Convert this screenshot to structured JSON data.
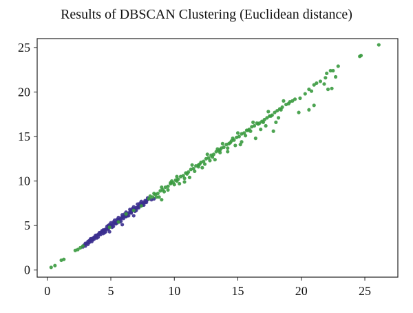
{
  "chart_data": {
    "type": "scatter",
    "title": "Results of DBSCAN Clustering (Euclidean distance)",
    "xlabel": "",
    "ylabel": "",
    "xlim": [
      -0.8,
      27.6
    ],
    "ylim": [
      -0.8,
      26.0
    ],
    "x_ticks": [
      0,
      5,
      10,
      15,
      20,
      25
    ],
    "y_ticks": [
      0,
      5,
      10,
      15,
      20,
      25
    ],
    "colors": {
      "cluster_blue": "#3b2f8f",
      "cluster_green": "#3a9a3f"
    },
    "series": [
      {
        "color": "#3b2f8f",
        "points": [
          [
            2.9,
            2.8
          ],
          [
            3.0,
            3.0
          ],
          [
            3.1,
            3.0
          ],
          [
            3.2,
            3.2
          ],
          [
            3.3,
            3.3
          ],
          [
            3.4,
            3.3
          ],
          [
            3.5,
            3.5
          ],
          [
            3.6,
            3.6
          ],
          [
            3.7,
            3.7
          ],
          [
            3.8,
            3.7
          ],
          [
            3.9,
            3.9
          ],
          [
            4.0,
            4.0
          ],
          [
            4.1,
            4.0
          ],
          [
            4.2,
            4.2
          ],
          [
            4.3,
            4.3
          ],
          [
            4.4,
            4.3
          ],
          [
            4.5,
            4.5
          ],
          [
            4.6,
            4.6
          ],
          [
            4.7,
            4.6
          ],
          [
            4.8,
            4.8
          ],
          [
            4.9,
            4.9
          ],
          [
            5.0,
            5.0
          ],
          [
            5.1,
            5.0
          ],
          [
            5.2,
            5.2
          ],
          [
            5.3,
            5.3
          ],
          [
            5.4,
            5.3
          ],
          [
            5.5,
            5.5
          ],
          [
            5.6,
            5.6
          ],
          [
            5.7,
            5.7
          ],
          [
            5.8,
            5.8
          ],
          [
            5.9,
            5.9
          ],
          [
            6.0,
            6.0
          ],
          [
            6.1,
            6.0
          ],
          [
            6.2,
            6.2
          ],
          [
            6.3,
            6.3
          ],
          [
            6.4,
            6.4
          ],
          [
            6.5,
            6.5
          ],
          [
            6.6,
            6.5
          ],
          [
            6.7,
            6.7
          ],
          [
            6.8,
            6.8
          ],
          [
            6.9,
            6.9
          ],
          [
            7.0,
            7.0
          ],
          [
            7.1,
            7.0
          ],
          [
            7.2,
            7.2
          ],
          [
            7.3,
            7.3
          ],
          [
            7.4,
            7.3
          ],
          [
            7.5,
            7.5
          ],
          [
            7.6,
            7.6
          ],
          [
            7.7,
            7.6
          ],
          [
            7.8,
            7.8
          ],
          [
            7.9,
            7.9
          ],
          [
            8.0,
            8.0
          ],
          [
            8.2,
            7.9
          ],
          [
            3.3,
            3.1
          ],
          [
            3.6,
            3.4
          ],
          [
            3.9,
            3.6
          ],
          [
            4.2,
            4.0
          ],
          [
            4.5,
            4.2
          ],
          [
            4.8,
            4.6
          ],
          [
            5.1,
            4.8
          ],
          [
            5.4,
            5.2
          ],
          [
            5.7,
            5.4
          ],
          [
            6.0,
            5.8
          ],
          [
            6.3,
            6.1
          ],
          [
            6.6,
            6.4
          ],
          [
            6.9,
            6.7
          ],
          [
            7.2,
            7.0
          ],
          [
            7.5,
            7.3
          ],
          [
            7.8,
            7.6
          ],
          [
            4.4,
            4.5
          ],
          [
            4.7,
            4.9
          ],
          [
            5.0,
            5.3
          ],
          [
            5.3,
            5.6
          ],
          [
            5.6,
            5.9
          ],
          [
            5.9,
            6.2
          ],
          [
            6.2,
            6.5
          ],
          [
            6.5,
            6.8
          ],
          [
            6.8,
            7.1
          ],
          [
            7.1,
            7.4
          ],
          [
            7.4,
            7.7
          ],
          [
            3.5,
            3.2
          ],
          [
            4.0,
            3.7
          ],
          [
            4.6,
            4.3
          ],
          [
            5.2,
            4.9
          ],
          [
            5.8,
            5.5
          ],
          [
            6.4,
            6.1
          ],
          [
            7.0,
            6.7
          ],
          [
            7.6,
            7.3
          ],
          [
            3.8,
            3.9
          ],
          [
            4.3,
            4.4
          ],
          [
            4.9,
            5.1
          ],
          [
            5.5,
            5.7
          ],
          [
            6.1,
            6.3
          ],
          [
            6.7,
            6.9
          ],
          [
            7.3,
            7.5
          ],
          [
            7.9,
            8.1
          ],
          [
            3.0,
            2.7
          ],
          [
            3.4,
            3.5
          ],
          [
            3.7,
            3.5
          ],
          [
            4.1,
            4.2
          ],
          [
            4.4,
            4.1
          ],
          [
            4.8,
            5.0
          ],
          [
            5.2,
            5.4
          ],
          [
            5.5,
            5.3
          ],
          [
            5.9,
            6.0
          ],
          [
            6.2,
            6.0
          ],
          [
            6.6,
            6.7
          ],
          [
            6.9,
            6.6
          ],
          [
            7.3,
            7.2
          ],
          [
            7.7,
            7.8
          ],
          [
            6.8,
            6.1
          ],
          [
            5.9,
            5.1
          ],
          [
            4.9,
            4.3
          ],
          [
            8.4,
            8.0
          ],
          [
            3.2,
            2.9
          ],
          [
            2.8,
            2.6
          ]
        ]
      },
      {
        "color": "#3a9a3f",
        "points": [
          [
            0.3,
            0.3
          ],
          [
            0.6,
            0.5
          ],
          [
            1.1,
            1.1
          ],
          [
            1.3,
            1.2
          ],
          [
            2.2,
            2.2
          ],
          [
            2.4,
            2.3
          ],
          [
            2.6,
            2.5
          ],
          [
            2.8,
            2.7
          ],
          [
            4.9,
            4.8
          ],
          [
            5.6,
            5.4
          ],
          [
            6.2,
            6.3
          ],
          [
            6.8,
            6.7
          ],
          [
            7.4,
            7.2
          ],
          [
            8.0,
            8.0
          ],
          [
            8.3,
            8.2
          ],
          [
            8.5,
            8.5
          ],
          [
            8.7,
            8.6
          ],
          [
            8.9,
            8.9
          ],
          [
            9.1,
            9.0
          ],
          [
            9.3,
            9.3
          ],
          [
            9.5,
            9.4
          ],
          [
            9.7,
            9.7
          ],
          [
            9.9,
            9.8
          ],
          [
            10.1,
            10.1
          ],
          [
            10.3,
            10.2
          ],
          [
            10.5,
            10.5
          ],
          [
            10.7,
            10.6
          ],
          [
            10.9,
            10.9
          ],
          [
            11.1,
            11.0
          ],
          [
            11.3,
            11.3
          ],
          [
            11.5,
            11.4
          ],
          [
            11.7,
            11.7
          ],
          [
            11.9,
            11.8
          ],
          [
            12.1,
            12.1
          ],
          [
            12.3,
            12.2
          ],
          [
            12.5,
            12.5
          ],
          [
            12.7,
            12.6
          ],
          [
            12.9,
            12.9
          ],
          [
            13.1,
            13.0
          ],
          [
            13.3,
            13.3
          ],
          [
            13.5,
            13.4
          ],
          [
            13.7,
            13.7
          ],
          [
            13.9,
            13.8
          ],
          [
            14.1,
            14.1
          ],
          [
            14.3,
            14.2
          ],
          [
            14.5,
            14.5
          ],
          [
            14.7,
            14.6
          ],
          [
            14.9,
            14.9
          ],
          [
            15.1,
            15.0
          ],
          [
            15.3,
            15.3
          ],
          [
            15.5,
            15.4
          ],
          [
            15.7,
            15.7
          ],
          [
            15.9,
            15.8
          ],
          [
            16.1,
            16.1
          ],
          [
            16.3,
            16.2
          ],
          [
            16.5,
            16.5
          ],
          [
            16.7,
            16.5
          ],
          [
            16.9,
            16.7
          ],
          [
            17.1,
            16.9
          ],
          [
            17.3,
            17.1
          ],
          [
            17.5,
            17.3
          ],
          [
            17.7,
            17.4
          ],
          [
            17.9,
            17.7
          ],
          [
            18.1,
            17.9
          ],
          [
            18.3,
            18.1
          ],
          [
            18.5,
            18.3
          ],
          [
            18.8,
            18.6
          ],
          [
            19.0,
            18.7
          ],
          [
            19.3,
            19.0
          ],
          [
            19.5,
            19.2
          ],
          [
            19.9,
            19.3
          ],
          [
            20.3,
            19.8
          ],
          [
            20.6,
            20.3
          ],
          [
            20.8,
            20.1
          ],
          [
            21.0,
            20.8
          ],
          [
            21.2,
            21.0
          ],
          [
            21.5,
            21.2
          ],
          [
            21.9,
            21.6
          ],
          [
            22.0,
            22.1
          ],
          [
            22.3,
            22.4
          ],
          [
            22.5,
            22.4
          ],
          [
            22.7,
            21.7
          ],
          [
            22.9,
            22.9
          ],
          [
            24.6,
            24.0
          ],
          [
            24.7,
            24.1
          ],
          [
            26.1,
            25.3
          ],
          [
            20.6,
            18.0
          ],
          [
            21.0,
            18.5
          ],
          [
            21.8,
            20.9
          ],
          [
            22.1,
            20.3
          ],
          [
            22.4,
            20.4
          ],
          [
            19.8,
            17.7
          ],
          [
            18.2,
            17.1
          ],
          [
            17.2,
            16.2
          ],
          [
            16.4,
            14.8
          ],
          [
            15.2,
            14.1
          ],
          [
            14.2,
            13.7
          ],
          [
            13.6,
            13.2
          ],
          [
            12.8,
            12.3
          ],
          [
            11.9,
            11.6
          ],
          [
            10.8,
            10.3
          ],
          [
            10.0,
            9.6
          ],
          [
            9.2,
            8.8
          ],
          [
            8.6,
            8.2
          ],
          [
            8.1,
            8.3
          ],
          [
            9.0,
            9.3
          ],
          [
            10.2,
            10.5
          ],
          [
            11.4,
            11.8
          ],
          [
            12.6,
            13.0
          ],
          [
            13.8,
            14.2
          ],
          [
            15.0,
            15.4
          ],
          [
            16.2,
            16.6
          ],
          [
            17.4,
            17.8
          ],
          [
            18.6,
            19.0
          ],
          [
            10.4,
            9.7
          ],
          [
            10.8,
            9.9
          ],
          [
            9.5,
            9.0
          ],
          [
            11.2,
            10.4
          ],
          [
            12.2,
            11.5
          ],
          [
            13.2,
            12.4
          ],
          [
            14.2,
            13.3
          ],
          [
            15.3,
            14.4
          ],
          [
            16.8,
            15.8
          ],
          [
            18.0,
            16.6
          ],
          [
            17.8,
            15.6
          ],
          [
            14.8,
            14.0
          ],
          [
            11.6,
            11.1
          ],
          [
            9.7,
            9.8
          ],
          [
            12.4,
            11.9
          ],
          [
            13.0,
            12.7
          ],
          [
            15.6,
            15.1
          ],
          [
            16.0,
            15.6
          ],
          [
            17.0,
            16.6
          ],
          [
            13.4,
            13.6
          ],
          [
            14.6,
            14.8
          ],
          [
            9.8,
            10.0
          ],
          [
            8.4,
            8.6
          ],
          [
            8.8,
            8.2
          ],
          [
            9.0,
            7.9
          ],
          [
            10.2,
            10.0
          ],
          [
            11.0,
            10.8
          ],
          [
            12.0,
            11.9
          ],
          [
            13.6,
            13.5
          ],
          [
            14.4,
            14.3
          ],
          [
            15.8,
            15.7
          ],
          [
            16.6,
            16.4
          ],
          [
            17.6,
            17.3
          ],
          [
            18.4,
            18.0
          ],
          [
            19.1,
            18.9
          ]
        ]
      }
    ]
  }
}
